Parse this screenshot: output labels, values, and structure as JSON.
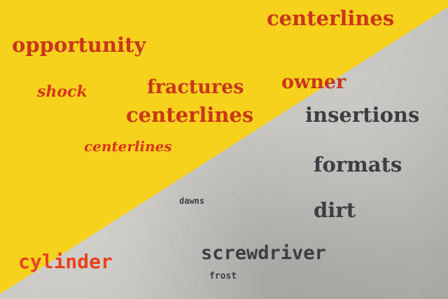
{
  "background": {
    "yellow_color": "#f7d21c",
    "concrete_color": "#bdbcb8"
  },
  "words": {
    "centerlines_top": "centerlines",
    "opportunity": "opportunity",
    "shock": "shock",
    "fractures": "fractures",
    "owner": "owner",
    "centerlines_mid": "centerlines",
    "insertions": "insertions",
    "centerlines_script": "centerlines",
    "formats": "formats",
    "dawns": "dawns",
    "dirt": "dirt",
    "screwdriver": "screwdriver",
    "cylinder": "cylinder",
    "frost": "frost"
  }
}
